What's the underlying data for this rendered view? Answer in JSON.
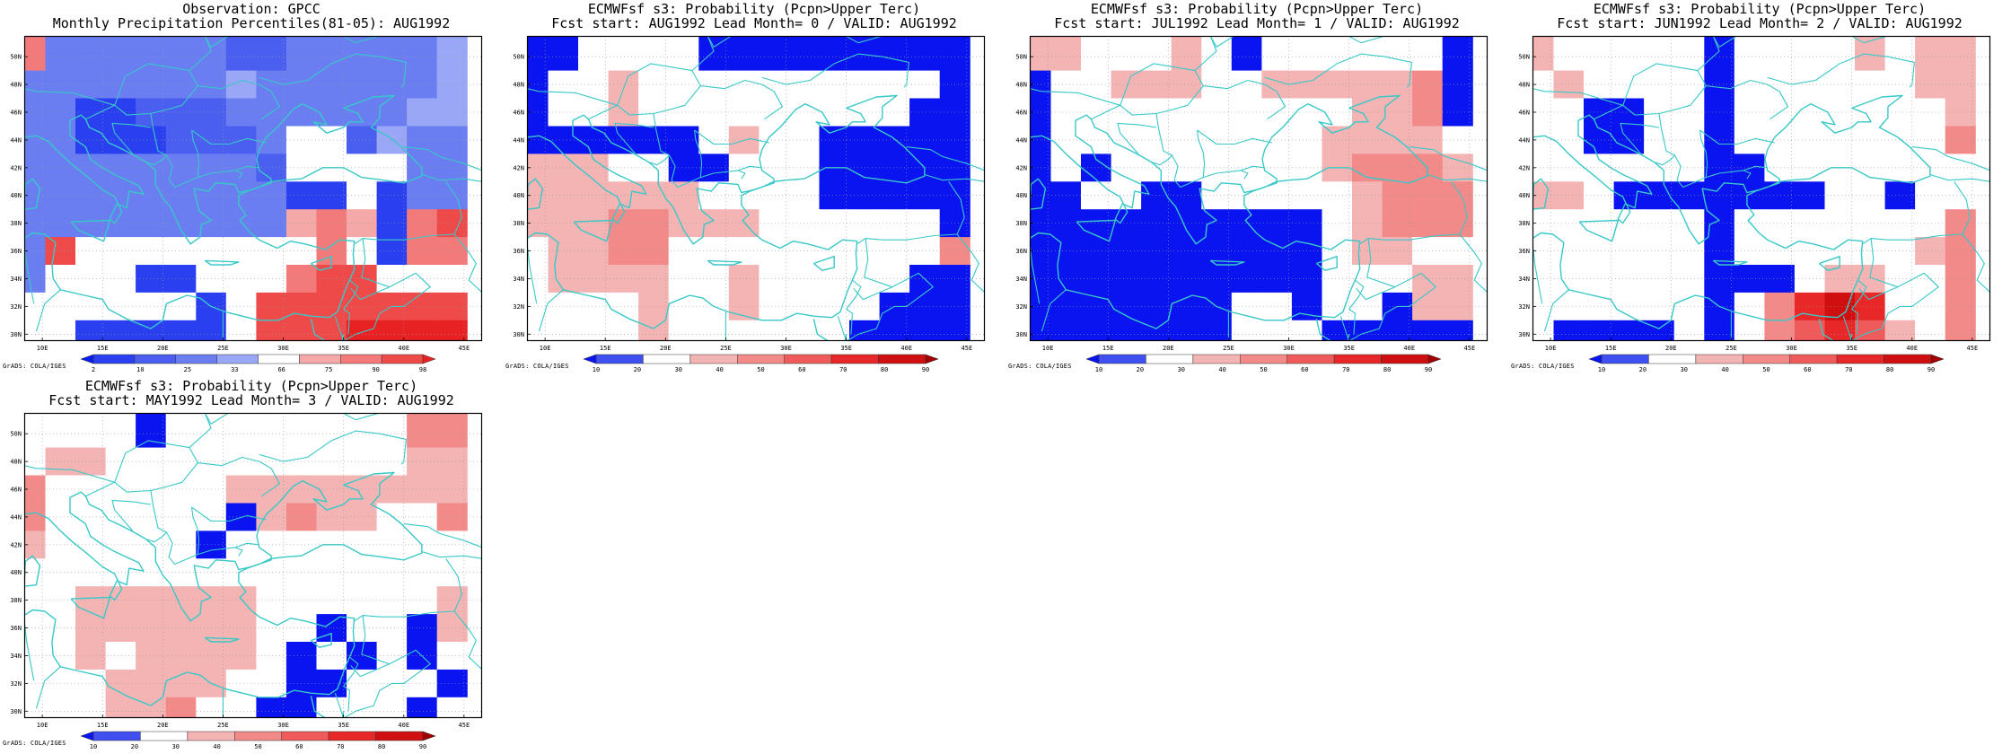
{
  "credit": "GrADS: COLA/IGES",
  "colors": {
    "coast": "#38c8c8",
    "frame": "#000000",
    "obs_scale": [
      "#0a1ef0",
      "#2a40f0",
      "#4a5ef0",
      "#6a7ef2",
      "#9aa6f6",
      "#ffffff",
      "#f4a8a8",
      "#f27a7a",
      "#ef4a4a",
      "#e82222"
    ],
    "prob_scale": [
      "#0a14f0",
      "#4050f0",
      "#ffffff",
      "#f4b4b4",
      "#f28a8a",
      "#ef5a5a",
      "#e82828",
      "#d01010",
      "#a00000"
    ]
  },
  "map": {
    "lon_labels": [
      "10E",
      "15E",
      "20E",
      "25E",
      "30E",
      "35E",
      "40E",
      "45E"
    ],
    "lat_labels": [
      "50N",
      "48N",
      "46N",
      "44N",
      "42N",
      "40N",
      "38N",
      "36N",
      "34N",
      "32N",
      "30N"
    ]
  },
  "panels": [
    {
      "title1": "Observation: GPCC",
      "title2": "Monthly Precipitation Percentiles(81-05): AUG1992",
      "scale": "obs",
      "colorbar_labels": [
        "2",
        "10",
        "25",
        "33",
        "66",
        "75",
        "90",
        "98"
      ]
    },
    {
      "title1": "ECMWFsf s3: Probability (Pcpn>Upper Terc)",
      "title2": "Fcst start: AUG1992  Lead Month= 0 / VALID: AUG1992",
      "scale": "prob",
      "colorbar_labels": [
        "10",
        "20",
        "30",
        "40",
        "50",
        "60",
        "70",
        "80",
        "90"
      ]
    },
    {
      "title1": "ECMWFsf s3: Probability (Pcpn>Upper Terc)",
      "title2": "Fcst start: JUL1992  Lead Month= 1 / VALID: AUG1992",
      "scale": "prob",
      "colorbar_labels": [
        "10",
        "20",
        "30",
        "40",
        "50",
        "60",
        "70",
        "80",
        "90"
      ]
    },
    {
      "title1": "ECMWFsf s3: Probability (Pcpn>Upper Terc)",
      "title2": "Fcst start: JUN1992  Lead Month= 2 / VALID: AUG1992",
      "scale": "prob",
      "colorbar_labels": [
        "10",
        "20",
        "30",
        "40",
        "50",
        "60",
        "70",
        "80",
        "90"
      ]
    },
    {
      "title1": "ECMWFsf s3: Probability (Pcpn>Upper Terc)",
      "title2": "Fcst start: MAY1992  Lead Month= 3 / VALID: AUG1992",
      "scale": "prob",
      "colorbar_labels": [
        "10",
        "20",
        "30",
        "40",
        "50",
        "60",
        "70",
        "80",
        "90"
      ]
    }
  ],
  "chart_data": [
    {
      "type": "heatmap",
      "title": "Observation: GPCC",
      "subtitle": "Monthly Precipitation Percentiles(81-05): AUG1992",
      "x_range": [
        8.5,
        46.5
      ],
      "y_range": [
        29.5,
        51.5
      ],
      "grid_lon": [
        9,
        11.5,
        14,
        16.5,
        19,
        21.5,
        24,
        26.5,
        29,
        31.5,
        34,
        36.5,
        39,
        41.5,
        44,
        46.5
      ],
      "grid_lat": [
        51,
        49,
        47,
        45,
        43,
        41,
        39,
        37,
        35,
        33,
        31
      ],
      "cells": [
        [
          7,
          3,
          3,
          3,
          3,
          3,
          3,
          2,
          2,
          3,
          3,
          3,
          3,
          3,
          4
        ],
        [
          3,
          3,
          3,
          3,
          3,
          3,
          3,
          4,
          3,
          3,
          3,
          3,
          3,
          3,
          4
        ],
        [
          3,
          3,
          1,
          1,
          2,
          2,
          2,
          3,
          3,
          3,
          3,
          3,
          3,
          4,
          4
        ],
        [
          3,
          3,
          1,
          1,
          1,
          2,
          2,
          2,
          3,
          5,
          5,
          2,
          4,
          3,
          3
        ],
        [
          3,
          3,
          3,
          3,
          3,
          3,
          3,
          3,
          2,
          5,
          5,
          5,
          5,
          3,
          3
        ],
        [
          3,
          3,
          3,
          3,
          3,
          3,
          3,
          3,
          3,
          1,
          1,
          5,
          1,
          3,
          3
        ],
        [
          3,
          3,
          3,
          3,
          3,
          3,
          3,
          3,
          3,
          6,
          7,
          6,
          1,
          7,
          8
        ],
        [
          3,
          8,
          5,
          5,
          5,
          5,
          5,
          5,
          5,
          5,
          7,
          5,
          1,
          7,
          7
        ],
        [
          3,
          5,
          5,
          5,
          1,
          1,
          5,
          5,
          5,
          7,
          8,
          8,
          5,
          5,
          5
        ],
        [
          5,
          5,
          5,
          5,
          5,
          5,
          1,
          5,
          8,
          8,
          8,
          8,
          8,
          8,
          8
        ],
        [
          5,
          5,
          1,
          1,
          1,
          1,
          1,
          5,
          8,
          8,
          8,
          9,
          9,
          9,
          9
        ]
      ]
    },
    {
      "type": "heatmap",
      "title": "ECMWFsf s3: Probability (Pcpn>Upper Terc)",
      "subtitle": "Fcst start: AUG1992  Lead Month= 0 / VALID: AUG1992",
      "x_range": [
        8.5,
        46.5
      ],
      "y_range": [
        29.5,
        51.5
      ],
      "cells": [
        [
          0,
          0,
          2,
          2,
          2,
          2,
          0,
          0,
          0,
          0,
          0,
          0,
          0,
          0,
          0
        ],
        [
          0,
          2,
          2,
          3,
          2,
          2,
          2,
          2,
          2,
          2,
          2,
          2,
          2,
          2,
          0
        ],
        [
          0,
          2,
          2,
          3,
          2,
          2,
          2,
          2,
          2,
          2,
          2,
          2,
          2,
          0,
          0
        ],
        [
          0,
          0,
          0,
          0,
          0,
          0,
          2,
          3,
          2,
          2,
          0,
          0,
          0,
          0,
          0
        ],
        [
          3,
          3,
          3,
          2,
          2,
          0,
          0,
          2,
          2,
          2,
          0,
          0,
          0,
          0,
          0
        ],
        [
          3,
          3,
          3,
          3,
          3,
          3,
          2,
          2,
          2,
          2,
          0,
          0,
          0,
          0,
          0
        ],
        [
          3,
          3,
          3,
          4,
          4,
          3,
          3,
          3,
          2,
          2,
          2,
          2,
          2,
          2,
          0
        ],
        [
          2,
          3,
          3,
          4,
          4,
          2,
          2,
          2,
          2,
          2,
          2,
          2,
          2,
          2,
          4
        ],
        [
          2,
          3,
          3,
          3,
          3,
          2,
          2,
          3,
          2,
          2,
          2,
          2,
          2,
          0,
          0
        ],
        [
          2,
          2,
          2,
          2,
          3,
          2,
          2,
          3,
          2,
          2,
          2,
          2,
          0,
          0,
          0
        ],
        [
          2,
          2,
          2,
          2,
          3,
          2,
          2,
          2,
          2,
          2,
          2,
          0,
          0,
          0,
          0
        ]
      ]
    },
    {
      "type": "heatmap",
      "title": "ECMWFsf s3: Probability (Pcpn>Upper Terc)",
      "subtitle": "Fcst start: JUL1992  Lead Month= 1 / VALID: AUG1992",
      "x_range": [
        8.5,
        46.5
      ],
      "y_range": [
        29.5,
        51.5
      ],
      "cells": [
        [
          3,
          3,
          2,
          2,
          2,
          3,
          2,
          0,
          2,
          2,
          2,
          2,
          2,
          2,
          0
        ],
        [
          0,
          2,
          2,
          3,
          3,
          3,
          2,
          2,
          3,
          3,
          3,
          3,
          3,
          4,
          0
        ],
        [
          0,
          2,
          2,
          2,
          2,
          2,
          2,
          2,
          2,
          2,
          2,
          3,
          3,
          4,
          0
        ],
        [
          0,
          2,
          2,
          2,
          2,
          2,
          2,
          2,
          2,
          2,
          3,
          3,
          3,
          3,
          2
        ],
        [
          0,
          2,
          0,
          2,
          2,
          2,
          2,
          2,
          2,
          2,
          3,
          4,
          4,
          4,
          3
        ],
        [
          0,
          0,
          2,
          2,
          0,
          0,
          2,
          2,
          2,
          2,
          2,
          3,
          4,
          4,
          4
        ],
        [
          0,
          0,
          0,
          0,
          0,
          0,
          0,
          0,
          0,
          0,
          2,
          3,
          4,
          4,
          4
        ],
        [
          0,
          0,
          0,
          0,
          0,
          0,
          0,
          0,
          0,
          0,
          2,
          3,
          3,
          2,
          2
        ],
        [
          0,
          0,
          0,
          0,
          0,
          0,
          0,
          0,
          0,
          0,
          2,
          2,
          2,
          3,
          3
        ],
        [
          0,
          0,
          0,
          0,
          0,
          0,
          0,
          2,
          2,
          0,
          2,
          2,
          0,
          3,
          3
        ],
        [
          0,
          0,
          0,
          0,
          0,
          0,
          0,
          2,
          2,
          2,
          0,
          0,
          0,
          0,
          0
        ]
      ]
    },
    {
      "type": "heatmap",
      "title": "ECMWFsf s3: Probability (Pcpn>Upper Terc)",
      "subtitle": "Fcst start: JUN1992  Lead Month= 2 / VALID: AUG1992",
      "x_range": [
        8.5,
        46.5
      ],
      "y_range": [
        29.5,
        51.5
      ],
      "cells": [
        [
          3,
          2,
          2,
          2,
          2,
          2,
          0,
          2,
          2,
          2,
          2,
          3,
          2,
          3,
          3
        ],
        [
          2,
          3,
          2,
          2,
          2,
          2,
          0,
          2,
          2,
          2,
          2,
          2,
          2,
          3,
          3
        ],
        [
          2,
          2,
          0,
          0,
          2,
          2,
          0,
          2,
          2,
          2,
          2,
          2,
          2,
          2,
          3
        ],
        [
          2,
          2,
          0,
          0,
          2,
          2,
          0,
          2,
          2,
          2,
          2,
          2,
          2,
          2,
          4
        ],
        [
          2,
          2,
          2,
          2,
          2,
          2,
          0,
          0,
          2,
          2,
          2,
          2,
          2,
          2,
          2
        ],
        [
          3,
          3,
          2,
          0,
          0,
          0,
          0,
          0,
          0,
          0,
          2,
          2,
          0,
          2,
          2
        ],
        [
          2,
          2,
          2,
          2,
          2,
          2,
          0,
          2,
          2,
          2,
          2,
          2,
          2,
          2,
          4
        ],
        [
          2,
          2,
          2,
          2,
          2,
          2,
          0,
          2,
          2,
          2,
          2,
          2,
          2,
          3,
          4
        ],
        [
          2,
          2,
          2,
          2,
          2,
          2,
          0,
          0,
          0,
          2,
          3,
          3,
          2,
          2,
          4
        ],
        [
          2,
          2,
          2,
          2,
          2,
          2,
          0,
          2,
          4,
          6,
          7,
          6,
          2,
          2,
          4
        ],
        [
          2,
          0,
          0,
          0,
          0,
          2,
          0,
          2,
          4,
          5,
          6,
          5,
          3,
          2,
          4
        ]
      ]
    },
    {
      "type": "heatmap",
      "title": "ECMWFsf s3: Probability (Pcpn>Upper Terc)",
      "subtitle": "Fcst start: MAY1992  Lead Month= 3 / VALID: AUG1992",
      "x_range": [
        8.5,
        46.5
      ],
      "y_range": [
        29.5,
        51.5
      ],
      "cells": [
        [
          2,
          2,
          2,
          2,
          0,
          2,
          2,
          2,
          2,
          2,
          2,
          2,
          2,
          4,
          4
        ],
        [
          2,
          3,
          3,
          2,
          2,
          2,
          2,
          2,
          2,
          2,
          2,
          2,
          2,
          3,
          3
        ],
        [
          4,
          2,
          2,
          2,
          2,
          2,
          2,
          3,
          3,
          3,
          3,
          3,
          3,
          3,
          3
        ],
        [
          4,
          2,
          2,
          2,
          2,
          2,
          2,
          0,
          3,
          4,
          3,
          3,
          2,
          2,
          4
        ],
        [
          3,
          2,
          2,
          2,
          2,
          2,
          0,
          2,
          2,
          2,
          2,
          2,
          2,
          2,
          2
        ],
        [
          2,
          2,
          2,
          2,
          2,
          2,
          2,
          2,
          2,
          2,
          2,
          2,
          2,
          2,
          2
        ],
        [
          2,
          2,
          3,
          3,
          3,
          3,
          3,
          3,
          2,
          2,
          2,
          2,
          2,
          2,
          3
        ],
        [
          2,
          2,
          3,
          3,
          3,
          3,
          3,
          3,
          2,
          2,
          0,
          2,
          2,
          0,
          3
        ],
        [
          2,
          2,
          3,
          2,
          3,
          3,
          3,
          3,
          2,
          0,
          2,
          0,
          2,
          0,
          2
        ],
        [
          2,
          2,
          2,
          3,
          3,
          3,
          3,
          2,
          2,
          0,
          0,
          2,
          2,
          2,
          0
        ],
        [
          2,
          2,
          2,
          3,
          3,
          4,
          2,
          2,
          0,
          0,
          2,
          2,
          2,
          0,
          2
        ]
      ]
    }
  ]
}
